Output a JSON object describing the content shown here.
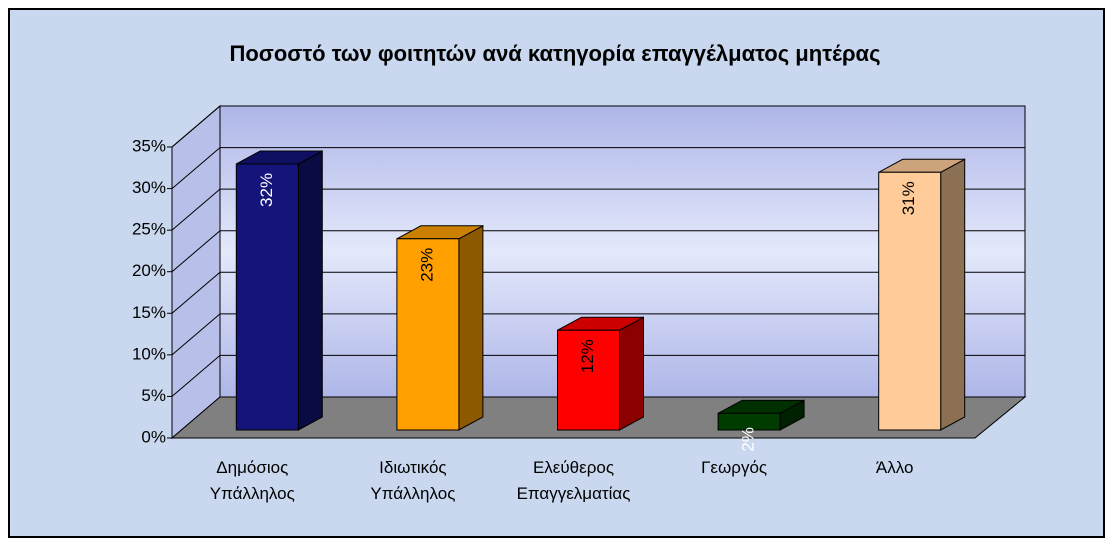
{
  "chart_data": {
    "type": "bar3d",
    "title": "Ποσοστό των φοιτητών ανά κατηγορία επαγγέλματος μητέρας",
    "categories": [
      "Δημόσιος Υπάλληλος",
      "Ιδιωτικός Υπάλληλος",
      "Ελεύθερος Επαγγελματίας",
      "Γεωργός",
      "Άλλο"
    ],
    "values": [
      32,
      23,
      12,
      2,
      31
    ],
    "value_labels": [
      "32%",
      "23%",
      "12%",
      "2%",
      "31%"
    ],
    "colors": [
      "#14147a",
      "#ffa000",
      "#ff0000",
      "#003c00",
      "#ffcc99"
    ],
    "label_colors": [
      "#ffffff",
      "#000000",
      "#000000",
      "#ffffff",
      "#000000"
    ],
    "ylim": [
      0,
      35
    ],
    "yticks": [
      {
        "value": 0,
        "label": "0%"
      },
      {
        "value": 5,
        "label": "5%"
      },
      {
        "value": 10,
        "label": "10%"
      },
      {
        "value": 15,
        "label": "15%"
      },
      {
        "value": 20,
        "label": "20%"
      },
      {
        "value": 25,
        "label": "25%"
      },
      {
        "value": 30,
        "label": "30%"
      },
      {
        "value": 35,
        "label": "35%"
      }
    ],
    "grid": true
  }
}
